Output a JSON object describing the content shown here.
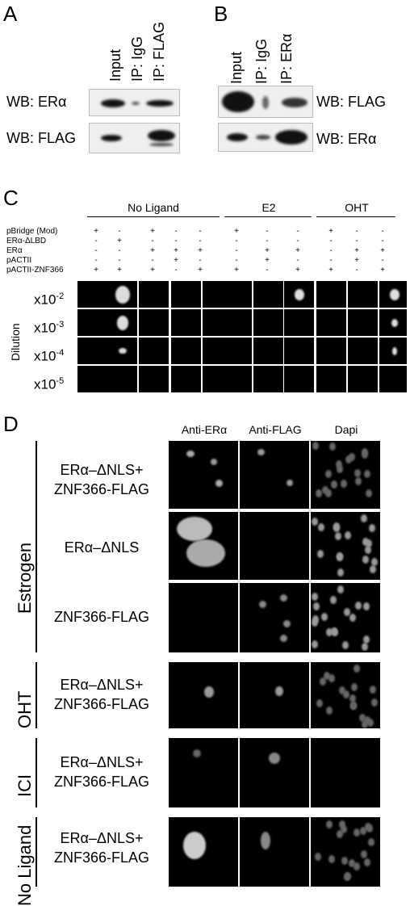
{
  "panel_labels": {
    "a": "A",
    "b": "B",
    "c": "C",
    "d": "D"
  },
  "panel_a": {
    "lanes": [
      "Input",
      "IP: IgG",
      "IP: FLAG"
    ],
    "rows": [
      "WB: ERα",
      "WB: FLAG"
    ]
  },
  "panel_b": {
    "lanes": [
      "Input",
      "IP: IgG",
      "IP: ERα"
    ],
    "rows": [
      "WB: FLAG",
      "WB: ERα"
    ]
  },
  "panel_c": {
    "groups": [
      "No Ligand",
      "E2",
      "OHT"
    ],
    "constructs": [
      "pBridge (Mod)",
      "ERα-ΔLBD",
      "ERα",
      "pACTII",
      "pACTII-ZNF366"
    ],
    "matrix": [
      [
        "+",
        "-",
        "+",
        "-",
        "-",
        "+",
        "-",
        "-",
        "+",
        "-",
        "-"
      ],
      [
        "-",
        "+",
        "-",
        "-",
        "-",
        "-",
        "-",
        "-",
        "-",
        "-",
        "-"
      ],
      [
        "-",
        "-",
        "+",
        "+",
        "+",
        "-",
        "+",
        "+",
        "-",
        "+",
        "+"
      ],
      [
        "-",
        "-",
        "-",
        "+",
        "-",
        "-",
        "+",
        "-",
        "-",
        "+",
        "-"
      ],
      [
        "+",
        "+",
        "+",
        "-",
        "+",
        "+",
        "-",
        "+",
        "+",
        "-",
        "+"
      ]
    ],
    "axis_label": "Dilution",
    "dilutions": [
      {
        "base": "x10",
        "exp": "-2"
      },
      {
        "base": "x10",
        "exp": "-3"
      },
      {
        "base": "x10",
        "exp": "-4"
      },
      {
        "base": "x10",
        "exp": "-5"
      }
    ]
  },
  "panel_d": {
    "columns": [
      "Anti-ERα",
      "Anti-FLAG",
      "Dapi"
    ],
    "conditions": [
      "Estrogen",
      "OHT",
      "ICI",
      "No Ligand"
    ],
    "rows": [
      {
        "line1": "ERα–ΔNLS+",
        "line2": "ZNF366-FLAG"
      },
      {
        "line1": "ERα–ΔNLS",
        "line2": ""
      },
      {
        "line1": "ZNF366-FLAG",
        "line2": ""
      },
      {
        "line1": "ERα–ΔNLS+",
        "line2": "ZNF366-FLAG"
      },
      {
        "line1": "ERα–ΔNLS+",
        "line2": "ZNF366-FLAG"
      },
      {
        "line1": "ERα–ΔNLS+",
        "line2": "ZNF366-FLAG"
      }
    ]
  }
}
